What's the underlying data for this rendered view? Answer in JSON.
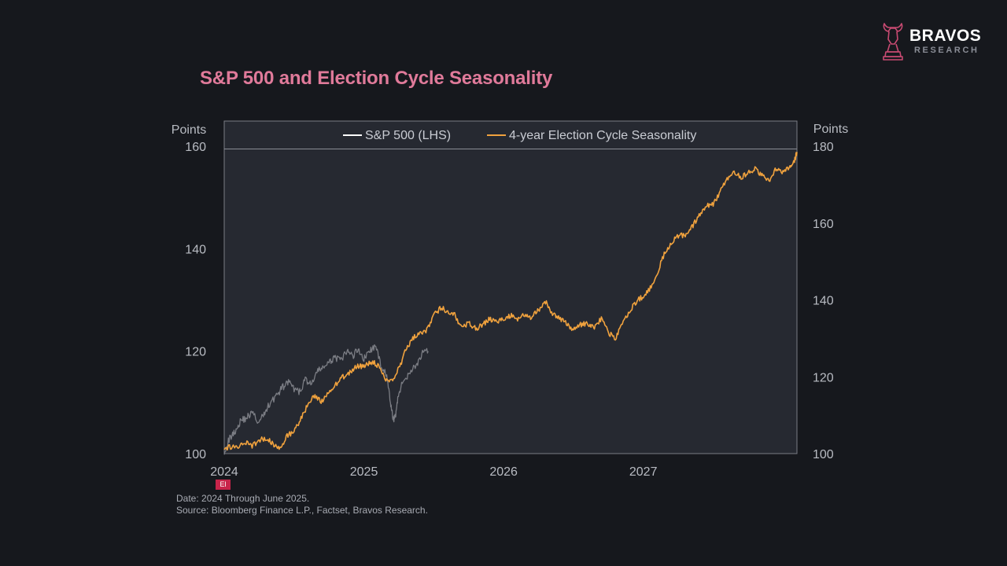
{
  "title": "S&P 500 and Election Cycle Seasonality",
  "brand": {
    "name": "BRAVOS",
    "sub": "RESEARCH",
    "accent": "#c84a72"
  },
  "badge_text": "El",
  "footnote": {
    "date": "Date: 2024 Through June 2025.",
    "source": "Source: Bloomberg Finance L.P., Factset, Bravos Research."
  },
  "chart_data": {
    "type": "line",
    "title": "S&P 500 and Election Cycle Seasonality",
    "left_axis": {
      "label": "Points",
      "ylim": [
        100,
        160
      ],
      "ticks": [
        100,
        120,
        140,
        160
      ]
    },
    "right_axis": {
      "label": "Points",
      "ylim": [
        100,
        180
      ],
      "ticks": [
        100,
        120,
        140,
        160,
        180
      ]
    },
    "x_axis": {
      "xlim": [
        2024.0,
        2028.1
      ],
      "ticks": [
        "2024",
        "2025",
        "2026",
        "2027"
      ]
    },
    "grid": false,
    "legend": "top-center",
    "series": [
      {
        "name": "S&P 500 (LHS)",
        "axis": "left",
        "color": "#7b7d84",
        "legend_color": "#ffffff",
        "points": [
          [
            2024.0,
            100.5
          ],
          [
            2024.04,
            103.0
          ],
          [
            2024.08,
            104.5
          ],
          [
            2024.12,
            106.5
          ],
          [
            2024.16,
            107.0
          ],
          [
            2024.2,
            108.0
          ],
          [
            2024.25,
            106.0
          ],
          [
            2024.29,
            108.0
          ],
          [
            2024.33,
            110.0
          ],
          [
            2024.38,
            111.5
          ],
          [
            2024.42,
            113.0
          ],
          [
            2024.46,
            114.0
          ],
          [
            2024.5,
            112.5
          ],
          [
            2024.54,
            112.0
          ],
          [
            2024.58,
            114.5
          ],
          [
            2024.62,
            113.5
          ],
          [
            2024.67,
            116.0
          ],
          [
            2024.71,
            117.0
          ],
          [
            2024.75,
            117.5
          ],
          [
            2024.79,
            119.0
          ],
          [
            2024.83,
            118.0
          ],
          [
            2024.88,
            120.0
          ],
          [
            2024.92,
            119.0
          ],
          [
            2024.96,
            120.5
          ],
          [
            2025.0,
            118.5
          ],
          [
            2025.04,
            120.0
          ],
          [
            2025.08,
            121.0
          ],
          [
            2025.12,
            117.5
          ],
          [
            2025.16,
            115.5
          ],
          [
            2025.19,
            110.0
          ],
          [
            2025.21,
            106.5
          ],
          [
            2025.23,
            108.0
          ],
          [
            2025.25,
            112.0
          ],
          [
            2025.29,
            114.5
          ],
          [
            2025.33,
            116.0
          ],
          [
            2025.38,
            117.5
          ],
          [
            2025.42,
            119.5
          ],
          [
            2025.46,
            120.0
          ]
        ]
      },
      {
        "name": "4-year Election Cycle Seasonality",
        "axis": "right",
        "color": "#f0a23e",
        "points": [
          [
            2024.0,
            101.0
          ],
          [
            2024.06,
            102.0
          ],
          [
            2024.1,
            101.5
          ],
          [
            2024.15,
            103.0
          ],
          [
            2024.2,
            102.0
          ],
          [
            2024.25,
            103.5
          ],
          [
            2024.3,
            104.0
          ],
          [
            2024.35,
            102.5
          ],
          [
            2024.4,
            101.5
          ],
          [
            2024.45,
            104.5
          ],
          [
            2024.5,
            106.0
          ],
          [
            2024.55,
            109.0
          ],
          [
            2024.6,
            113.0
          ],
          [
            2024.65,
            115.0
          ],
          [
            2024.7,
            113.5
          ],
          [
            2024.75,
            116.0
          ],
          [
            2024.8,
            118.0
          ],
          [
            2024.85,
            120.0
          ],
          [
            2024.9,
            121.0
          ],
          [
            2024.95,
            123.0
          ],
          [
            2025.0,
            122.5
          ],
          [
            2025.05,
            124.0
          ],
          [
            2025.1,
            123.0
          ],
          [
            2025.15,
            119.5
          ],
          [
            2025.2,
            119.0
          ],
          [
            2025.25,
            122.0
          ],
          [
            2025.3,
            127.0
          ],
          [
            2025.35,
            130.0
          ],
          [
            2025.4,
            131.5
          ],
          [
            2025.45,
            132.0
          ],
          [
            2025.5,
            136.0
          ],
          [
            2025.55,
            138.0
          ],
          [
            2025.6,
            137.0
          ],
          [
            2025.65,
            136.0
          ],
          [
            2025.7,
            133.0
          ],
          [
            2025.75,
            134.0
          ],
          [
            2025.8,
            132.5
          ],
          [
            2025.85,
            133.5
          ],
          [
            2025.9,
            135.0
          ],
          [
            2025.95,
            134.0
          ],
          [
            2026.0,
            135.0
          ],
          [
            2026.05,
            136.0
          ],
          [
            2026.1,
            135.0
          ],
          [
            2026.15,
            136.0
          ],
          [
            2026.2,
            135.5
          ],
          [
            2026.25,
            137.5
          ],
          [
            2026.3,
            139.5
          ],
          [
            2026.35,
            136.5
          ],
          [
            2026.4,
            135.0
          ],
          [
            2026.45,
            134.0
          ],
          [
            2026.5,
            132.0
          ],
          [
            2026.55,
            133.5
          ],
          [
            2026.6,
            134.0
          ],
          [
            2026.65,
            133.0
          ],
          [
            2026.7,
            135.0
          ],
          [
            2026.75,
            131.5
          ],
          [
            2026.8,
            130.0
          ],
          [
            2026.85,
            134.0
          ],
          [
            2026.9,
            137.0
          ],
          [
            2026.95,
            139.5
          ],
          [
            2027.0,
            141.0
          ],
          [
            2027.05,
            143.0
          ],
          [
            2027.1,
            147.0
          ],
          [
            2027.15,
            152.0
          ],
          [
            2027.2,
            155.0
          ],
          [
            2027.25,
            156.5
          ],
          [
            2027.3,
            157.0
          ],
          [
            2027.35,
            159.0
          ],
          [
            2027.4,
            162.0
          ],
          [
            2027.45,
            164.5
          ],
          [
            2027.5,
            165.0
          ],
          [
            2027.55,
            168.0
          ],
          [
            2027.6,
            171.5
          ],
          [
            2027.65,
            173.5
          ],
          [
            2027.7,
            172.0
          ],
          [
            2027.75,
            173.0
          ],
          [
            2027.8,
            174.0
          ],
          [
            2027.85,
            172.5
          ],
          [
            2027.9,
            171.0
          ],
          [
            2027.95,
            174.0
          ],
          [
            2028.0,
            173.0
          ],
          [
            2028.05,
            174.5
          ],
          [
            2028.08,
            176.0
          ],
          [
            2028.1,
            178.5
          ]
        ]
      }
    ]
  }
}
